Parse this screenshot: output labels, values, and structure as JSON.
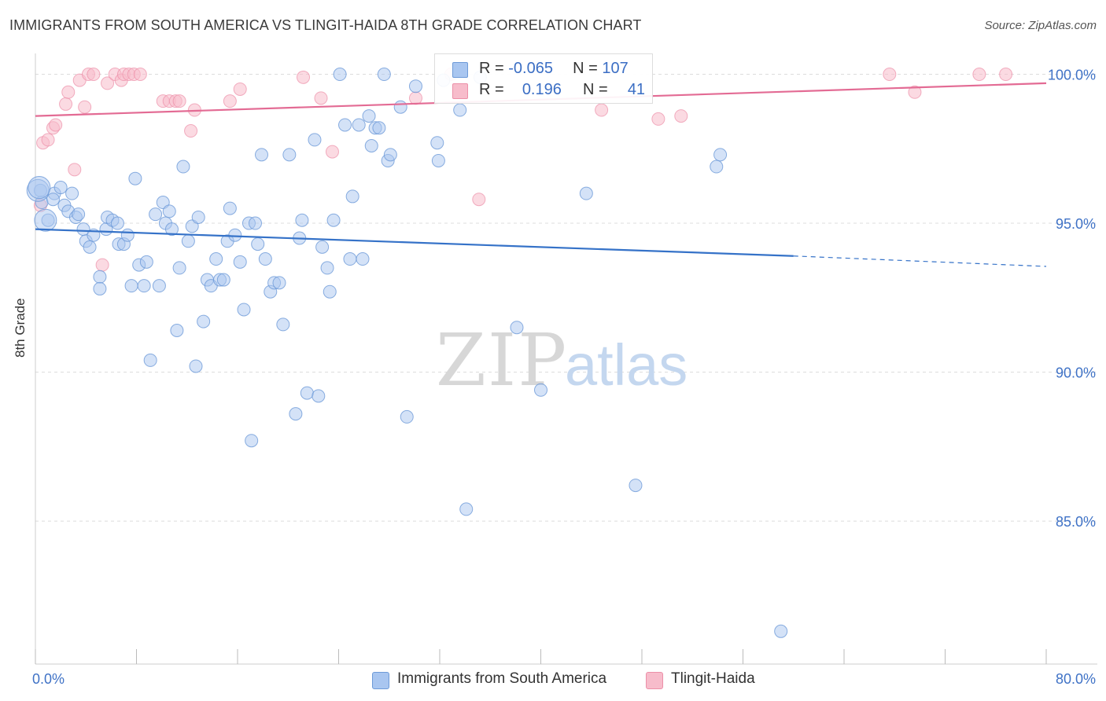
{
  "title": "IMMIGRANTS FROM SOUTH AMERICA VS TLINGIT-HAIDA 8TH GRADE CORRELATION CHART",
  "source": "Source: ZipAtlas.com",
  "watermark": {
    "zip": "ZIP",
    "atlas": "atlas"
  },
  "legend_stats": {
    "row1": {
      "r_label": "R =",
      "r_value": "-0.065",
      "n_label": "N =",
      "n_value": "107"
    },
    "row2": {
      "r_label": "R =",
      "r_value": "0.196",
      "n_label": "N =",
      "n_value": "41"
    }
  },
  "legend": {
    "series1": "Immigrants from South America",
    "series2": "Tlingit-Haida"
  },
  "colors": {
    "blue_fill": "#a9c6f0",
    "blue_stroke": "#6d9ad8",
    "blue_line": "#3572c8",
    "pink_fill": "#f7bccb",
    "pink_stroke": "#ec8fa8",
    "pink_line": "#e36b94",
    "tick_label": "#3f72c6",
    "grid": "#dcdcdc"
  },
  "chart_data": {
    "type": "scatter",
    "xlabel": "",
    "ylabel": "8th Grade",
    "xlim": [
      0,
      80
    ],
    "ylim": [
      80.2,
      100.7
    ],
    "x_tick_labels": [
      "0.0%",
      "80.0%"
    ],
    "y_ticks": [
      85,
      90,
      95,
      100
    ],
    "y_tick_labels": [
      "85.0%",
      "90.0%",
      "95.0%",
      "100.0%"
    ],
    "grid": true,
    "legend_position": "bottom",
    "series": [
      {
        "name": "Immigrants from South America",
        "color": "#a9c6f0",
        "trend": {
          "x": [
            0,
            60
          ],
          "y": [
            94.8,
            93.9
          ],
          "dashed_to": [
            80,
            93.55
          ]
        },
        "points": [
          [
            0.4,
            96.1
          ],
          [
            0.5,
            95.7
          ],
          [
            1.0,
            95.1
          ],
          [
            1.5,
            96.0
          ],
          [
            1.4,
            95.8
          ],
          [
            2.0,
            96.2
          ],
          [
            2.3,
            95.6
          ],
          [
            2.6,
            95.4
          ],
          [
            2.9,
            96.0
          ],
          [
            3.2,
            95.2
          ],
          [
            3.4,
            95.3
          ],
          [
            3.8,
            94.8
          ],
          [
            4.0,
            94.4
          ],
          [
            4.3,
            94.2
          ],
          [
            4.6,
            94.6
          ],
          [
            5.1,
            93.2
          ],
          [
            5.1,
            92.8
          ],
          [
            5.6,
            94.8
          ],
          [
            5.7,
            95.2
          ],
          [
            6.1,
            95.1
          ],
          [
            6.5,
            95.0
          ],
          [
            6.6,
            94.3
          ],
          [
            7.0,
            94.3
          ],
          [
            7.3,
            94.6
          ],
          [
            7.6,
            92.9
          ],
          [
            7.9,
            96.5
          ],
          [
            8.2,
            93.6
          ],
          [
            8.6,
            92.9
          ],
          [
            8.8,
            93.7
          ],
          [
            9.1,
            90.4
          ],
          [
            9.5,
            95.3
          ],
          [
            9.8,
            92.9
          ],
          [
            10.1,
            95.7
          ],
          [
            10.3,
            95.0
          ],
          [
            10.6,
            95.4
          ],
          [
            10.8,
            94.8
          ],
          [
            11.2,
            91.4
          ],
          [
            11.4,
            93.5
          ],
          [
            11.7,
            96.9
          ],
          [
            12.1,
            94.4
          ],
          [
            12.4,
            94.9
          ],
          [
            12.7,
            90.2
          ],
          [
            12.9,
            95.2
          ],
          [
            13.3,
            91.7
          ],
          [
            13.6,
            93.1
          ],
          [
            13.9,
            92.9
          ],
          [
            14.3,
            93.8
          ],
          [
            14.6,
            93.1
          ],
          [
            14.9,
            93.1
          ],
          [
            15.2,
            94.4
          ],
          [
            15.4,
            95.5
          ],
          [
            15.8,
            94.6
          ],
          [
            16.2,
            93.7
          ],
          [
            16.5,
            92.1
          ],
          [
            16.9,
            95.0
          ],
          [
            17.1,
            87.7
          ],
          [
            17.4,
            95.0
          ],
          [
            17.6,
            94.3
          ],
          [
            17.9,
            97.3
          ],
          [
            18.2,
            93.8
          ],
          [
            18.6,
            92.7
          ],
          [
            18.9,
            93.0
          ],
          [
            19.3,
            93.0
          ],
          [
            19.6,
            91.6
          ],
          [
            20.1,
            97.3
          ],
          [
            20.6,
            88.6
          ],
          [
            20.9,
            94.5
          ],
          [
            21.1,
            95.1
          ],
          [
            21.5,
            89.3
          ],
          [
            22.1,
            97.8
          ],
          [
            22.4,
            89.2
          ],
          [
            22.7,
            94.2
          ],
          [
            23.1,
            93.5
          ],
          [
            23.3,
            92.7
          ],
          [
            23.6,
            95.1
          ],
          [
            24.1,
            100.0
          ],
          [
            24.5,
            98.3
          ],
          [
            24.9,
            93.8
          ],
          [
            25.1,
            95.9
          ],
          [
            25.6,
            98.3
          ],
          [
            25.9,
            93.8
          ],
          [
            26.4,
            98.6
          ],
          [
            26.6,
            97.6
          ],
          [
            26.9,
            98.2
          ],
          [
            27.2,
            98.2
          ],
          [
            27.6,
            100.0
          ],
          [
            27.9,
            97.1
          ],
          [
            28.1,
            97.3
          ],
          [
            28.9,
            98.9
          ],
          [
            29.4,
            88.5
          ],
          [
            30.1,
            99.6
          ],
          [
            31.8,
            97.7
          ],
          [
            31.9,
            97.1
          ],
          [
            32.3,
            99.8
          ],
          [
            33.6,
            98.8
          ],
          [
            34.1,
            85.4
          ],
          [
            35.2,
            99.9
          ],
          [
            38.1,
            91.5
          ],
          [
            40.0,
            89.4
          ],
          [
            43.6,
            96.0
          ],
          [
            47.5,
            86.2
          ],
          [
            53.9,
            96.9
          ],
          [
            54.2,
            97.3
          ],
          [
            59.0,
            81.3
          ],
          [
            0.2,
            96.1
          ],
          [
            0.3,
            96.2
          ],
          [
            0.8,
            95.1
          ]
        ]
      },
      {
        "name": "Tlingit-Haida",
        "color": "#f7bccb",
        "trend": {
          "x": [
            0,
            80
          ],
          "y": [
            98.6,
            99.7
          ]
        },
        "points": [
          [
            0.4,
            95.6
          ],
          [
            0.6,
            97.7
          ],
          [
            1.0,
            97.8
          ],
          [
            1.4,
            98.2
          ],
          [
            1.6,
            98.3
          ],
          [
            2.4,
            99.0
          ],
          [
            2.6,
            99.4
          ],
          [
            3.1,
            96.8
          ],
          [
            3.5,
            99.8
          ],
          [
            3.9,
            98.9
          ],
          [
            4.2,
            100.0
          ],
          [
            4.6,
            100.0
          ],
          [
            5.3,
            93.6
          ],
          [
            5.7,
            99.7
          ],
          [
            6.3,
            100.0
          ],
          [
            6.8,
            99.8
          ],
          [
            7.0,
            100.0
          ],
          [
            7.4,
            100.0
          ],
          [
            7.8,
            100.0
          ],
          [
            8.3,
            100.0
          ],
          [
            10.1,
            99.1
          ],
          [
            10.6,
            99.1
          ],
          [
            11.1,
            99.1
          ],
          [
            11.4,
            99.1
          ],
          [
            12.3,
            98.1
          ],
          [
            12.6,
            98.8
          ],
          [
            15.4,
            99.1
          ],
          [
            16.2,
            99.5
          ],
          [
            21.2,
            99.9
          ],
          [
            22.6,
            99.2
          ],
          [
            23.5,
            97.4
          ],
          [
            30.1,
            99.2
          ],
          [
            32.9,
            100.0
          ],
          [
            35.1,
            95.8
          ],
          [
            44.8,
            98.8
          ],
          [
            49.3,
            98.5
          ],
          [
            51.1,
            98.6
          ],
          [
            67.6,
            100.0
          ],
          [
            69.6,
            99.4
          ],
          [
            74.7,
            100.0
          ],
          [
            76.8,
            100.0
          ]
        ]
      }
    ]
  }
}
